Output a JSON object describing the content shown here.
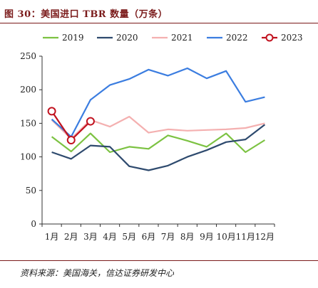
{
  "title": "图 30：美国进口 TBR 数量（万条）",
  "source": "资料来源：美国海关，信达证券研发中心",
  "chart_data": {
    "type": "line",
    "categories": [
      "1月",
      "2月",
      "3月",
      "4月",
      "5月",
      "6月",
      "7月",
      "8月",
      "9月",
      "10月",
      "11月",
      "12月"
    ],
    "ylim": [
      0,
      250
    ],
    "yticks": [
      0,
      50,
      100,
      150,
      200,
      250
    ],
    "legend_position": "top",
    "grid": false,
    "series": [
      {
        "name": "2019",
        "color": "#7cc242",
        "marker": "none",
        "values": [
          130,
          108,
          135,
          107,
          115,
          112,
          132,
          124,
          115,
          135,
          107,
          125
        ]
      },
      {
        "name": "2020",
        "color": "#2e4a6e",
        "marker": "none",
        "values": [
          107,
          97,
          117,
          115,
          86,
          80,
          87,
          100,
          110,
          122,
          126,
          148
        ]
      },
      {
        "name": "2021",
        "color": "#f4b0b0",
        "marker": "none",
        "values": [
          155,
          127,
          155,
          145,
          160,
          136,
          141,
          139,
          140,
          141,
          143,
          150
        ]
      },
      {
        "name": "2022",
        "color": "#3b7de0",
        "marker": "none",
        "values": [
          156,
          130,
          185,
          207,
          216,
          230,
          221,
          232,
          217,
          228,
          182,
          189
        ]
      },
      {
        "name": "2023",
        "color": "#c1121f",
        "marker": "circle",
        "values": [
          168,
          125,
          153,
          null,
          null,
          null,
          null,
          null,
          null,
          null,
          null,
          null
        ]
      }
    ]
  }
}
